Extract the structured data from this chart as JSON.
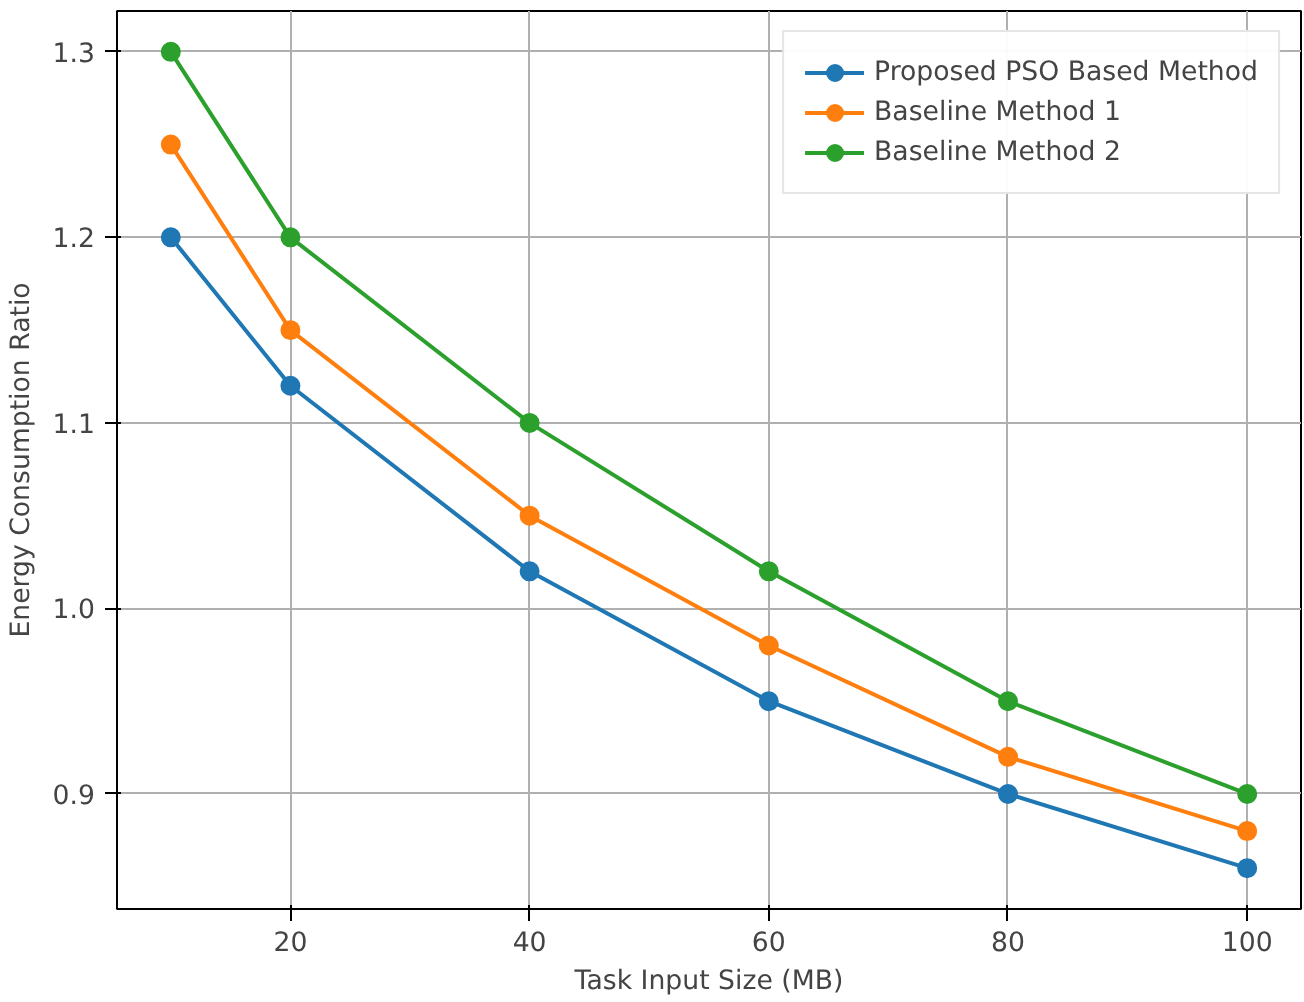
{
  "chart_data": {
    "type": "line",
    "xlabel": "Task Input Size (MB)",
    "ylabel": "Energy Consumption Ratio",
    "x": [
      10,
      20,
      40,
      60,
      80,
      100
    ],
    "series": [
      {
        "name": "Proposed PSO Based Method",
        "color": "#1f77b4",
        "values": [
          1.2,
          1.12,
          1.02,
          0.95,
          0.9,
          0.86
        ]
      },
      {
        "name": "Baseline Method 1",
        "color": "#ff7f0e",
        "values": [
          1.25,
          1.15,
          1.05,
          0.98,
          0.92,
          0.88
        ]
      },
      {
        "name": "Baseline Method 2",
        "color": "#2ca02c",
        "values": [
          1.3,
          1.2,
          1.1,
          1.02,
          0.95,
          0.9
        ]
      }
    ],
    "xlim": [
      5.5,
      104.5
    ],
    "ylim": [
      0.838,
      1.322
    ],
    "xticks": [
      20,
      40,
      60,
      80,
      100
    ],
    "yticks": [
      0.9,
      {
        "value": 1.0,
        "label": "1.0"
      },
      1.1,
      1.2,
      1.3
    ],
    "grid": true,
    "legend": "top right",
    "marker": "circle",
    "line_style": "solid"
  }
}
